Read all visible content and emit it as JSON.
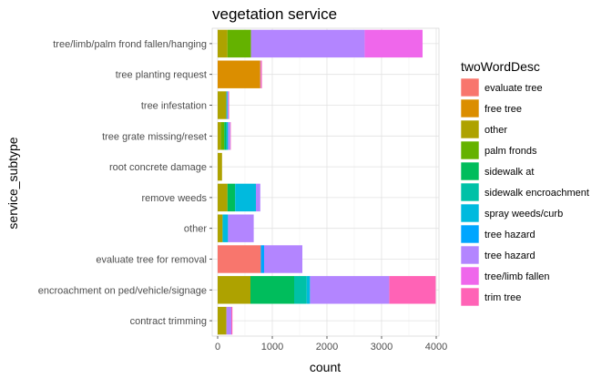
{
  "chart_data": {
    "type": "bar",
    "orientation": "horizontal",
    "stacked": true,
    "title": "vegetation service",
    "xlabel": "count",
    "ylabel": "service_subtype",
    "xlim": [
      -100,
      4050
    ],
    "xticks": [
      0,
      1000,
      2000,
      3000,
      4000
    ],
    "grid": true,
    "legend_title": "twoWordDesc",
    "legend_position": "right",
    "categories": [
      "tree/limb/palm frond fallen/hanging",
      "tree planting request",
      "tree infestation",
      "tree grate missing/reset",
      "root concrete damage",
      "remove weeds",
      "other",
      "evaluate tree for removal",
      "encroachment on ped/vehicle/signage",
      "contract trimming"
    ],
    "series": [
      {
        "name": "evaluate tree",
        "color": "#F8766D",
        "values": [
          0,
          0,
          0,
          0,
          0,
          0,
          0,
          790,
          0,
          0
        ]
      },
      {
        "name": "free tree",
        "color": "#DB8E00",
        "values": [
          0,
          780,
          0,
          0,
          0,
          0,
          0,
          0,
          0,
          0
        ]
      },
      {
        "name": "other",
        "color": "#AEA200",
        "values": [
          180,
          0,
          160,
          60,
          80,
          180,
          90,
          0,
          600,
          160
        ]
      },
      {
        "name": "palm fronds",
        "color": "#64B200",
        "values": [
          430,
          0,
          0,
          60,
          0,
          0,
          0,
          0,
          0,
          0
        ]
      },
      {
        "name": "sidewalk  at",
        "color": "#00BD5C",
        "values": [
          0,
          0,
          0,
          40,
          0,
          140,
          0,
          0,
          800,
          0
        ]
      },
      {
        "name": "sidewalk encroachment",
        "color": "#00C1A7",
        "values": [
          0,
          0,
          0,
          0,
          0,
          0,
          0,
          0,
          230,
          0
        ]
      },
      {
        "name": "spray weeds/curb",
        "color": "#00BADE",
        "values": [
          0,
          0,
          20,
          30,
          0,
          380,
          100,
          0,
          60,
          0
        ]
      },
      {
        "name": "tree hazard",
        "color": "#00A6FF",
        "values": [
          0,
          0,
          0,
          0,
          0,
          0,
          0,
          60,
          0,
          0
        ]
      },
      {
        "name": "tree hazard",
        "color": "#B385FF",
        "values": [
          2080,
          10,
          20,
          40,
          0,
          80,
          470,
          700,
          1450,
          90
        ]
      },
      {
        "name": "tree/limb fallen",
        "color": "#EF67EB",
        "values": [
          1060,
          0,
          0,
          0,
          0,
          0,
          0,
          0,
          0,
          0
        ]
      },
      {
        "name": "trim tree",
        "color": "#FF63B6",
        "values": [
          0,
          20,
          10,
          10,
          0,
          0,
          0,
          0,
          850,
          20
        ]
      }
    ]
  }
}
